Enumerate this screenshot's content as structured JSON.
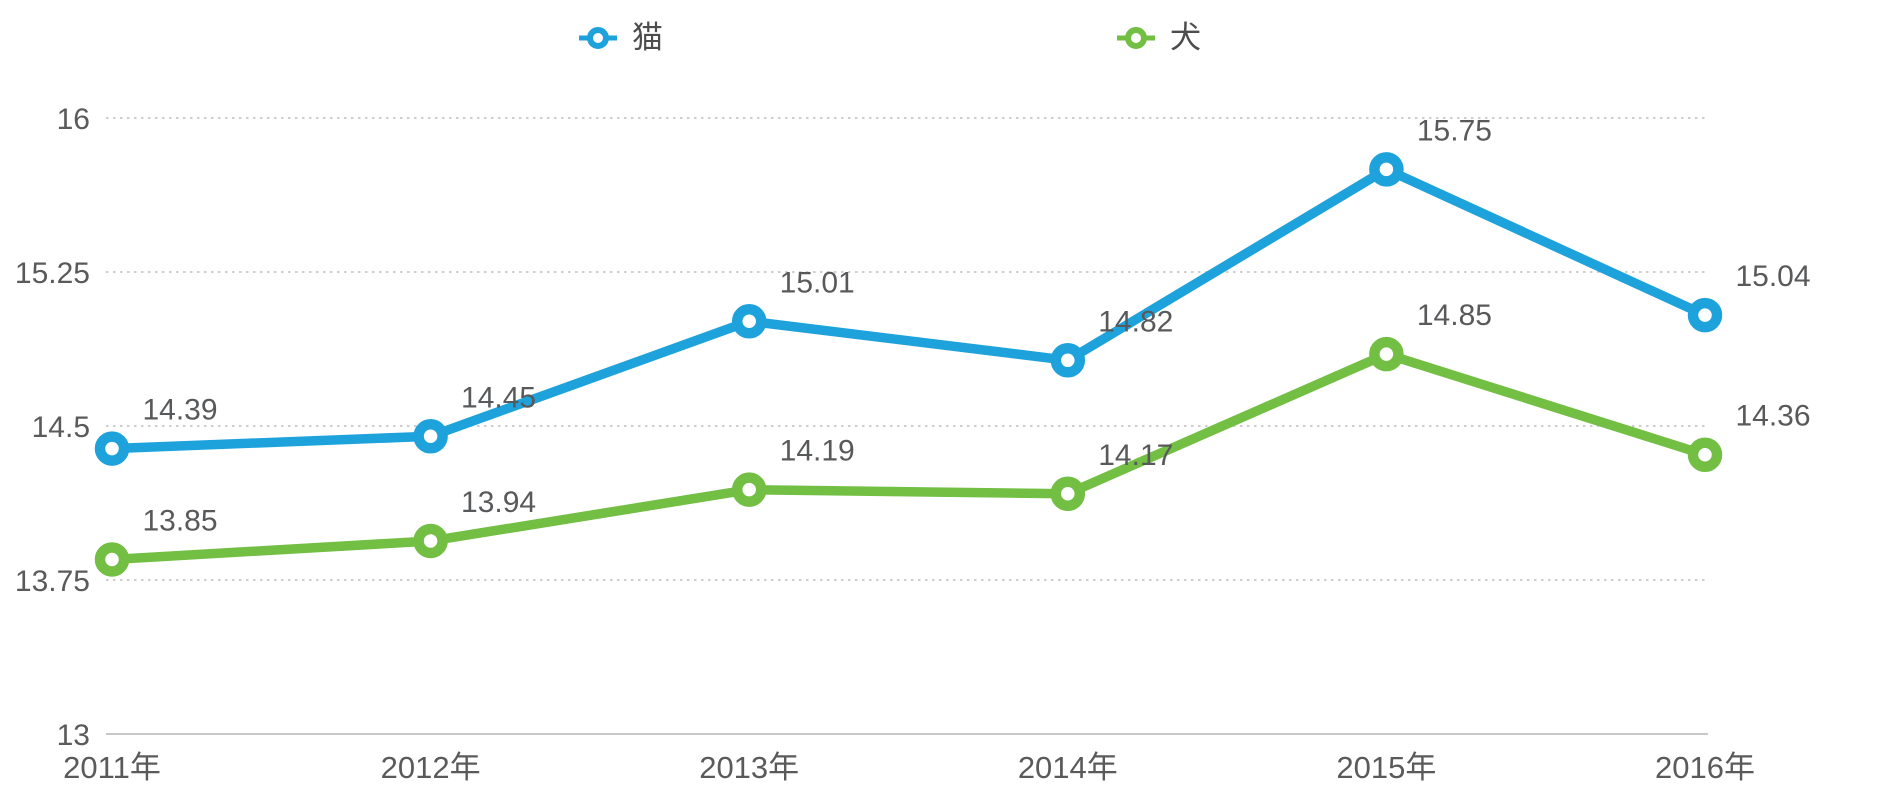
{
  "chart_data": {
    "type": "line",
    "title": "",
    "categories": [
      "2011年",
      "2012年",
      "2013年",
      "2014年",
      "2015年",
      "2016年"
    ],
    "series": [
      {
        "name": "猫",
        "color": "#1EA2DC",
        "values": [
          14.39,
          14.45,
          15.01,
          14.82,
          15.75,
          15.04
        ]
      },
      {
        "name": "犬",
        "color": "#72BF44",
        "values": [
          13.85,
          13.94,
          14.19,
          14.17,
          14.85,
          14.36
        ]
      }
    ],
    "y_ticks": [
      13,
      13.75,
      14.5,
      15.25,
      16
    ],
    "y_tick_labels": [
      "13",
      "13.75",
      "14.5",
      "15.25",
      "16"
    ],
    "ylim": [
      13,
      16
    ],
    "xlabel": "",
    "ylabel": "",
    "grid": "horizontal-dotted",
    "legend_position": "top",
    "data_labels_shown": true,
    "data_labels": {
      "猫": [
        "14.39",
        "14.45",
        "15.01",
        "14.82",
        "15.75",
        "15.04"
      ],
      "犬": [
        "13.85",
        "13.94",
        "14.19",
        "14.17",
        "14.85",
        "14.36"
      ]
    }
  },
  "colors": {
    "series_cat": "#1EA2DC",
    "series_dog": "#72BF44",
    "gridline": "#bdbdbd",
    "axis_line": "#b5b5b5",
    "tick_label": "#5a5a5a",
    "data_label": "#58595b",
    "legend_text": "#4d4d4d",
    "background": "#ffffff"
  },
  "legend": {
    "items": [
      {
        "label": "猫",
        "marker": "circle-line-marker-icon"
      },
      {
        "label": "犬",
        "marker": "circle-line-marker-icon"
      }
    ]
  }
}
